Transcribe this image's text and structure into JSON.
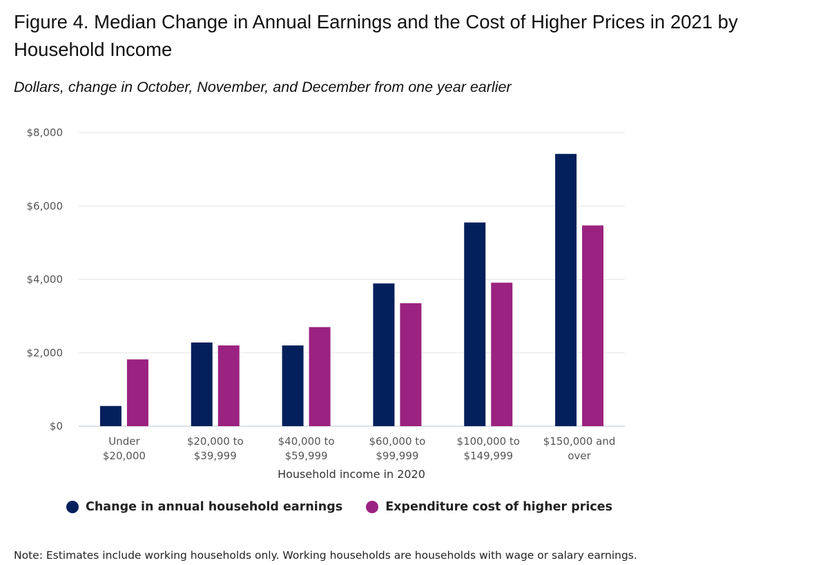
{
  "title": "Figure 4. Median Change in Annual Earnings and the Cost of Higher Prices in 2021 by Household Income",
  "subtitle": "Dollars, change in October, November, and December from one year earlier",
  "note": "Note: Estimates include working households only. Working households are households with wage or salary earnings.",
  "chart_data": {
    "type": "bar",
    "categories": [
      [
        "Under",
        "$20,000"
      ],
      [
        "$20,000 to",
        "$39,999"
      ],
      [
        "$40,000 to",
        "$59,999"
      ],
      [
        "$60,000 to",
        "$99,999"
      ],
      [
        "$100,000 to",
        "$149,999"
      ],
      [
        "$150,000 and",
        "over"
      ]
    ],
    "series": [
      {
        "name": "Change in annual household earnings",
        "color": "#03205c",
        "values": [
          550,
          2280,
          2200,
          3890,
          5550,
          7420
        ]
      },
      {
        "name": "Expenditure cost of higher prices",
        "color": "#9b2280",
        "values": [
          1820,
          2200,
          2700,
          3350,
          3910,
          5470
        ]
      }
    ],
    "xlabel": "Household income in 2020",
    "ylabel": "",
    "ylim": [
      0,
      8000
    ],
    "yticks": [
      0,
      2000,
      4000,
      6000,
      8000
    ],
    "ytick_labels": [
      "$0",
      "$2,000",
      "$4,000",
      "$6,000",
      "$8,000"
    ],
    "grid": true,
    "legend_position": "bottom-left"
  }
}
